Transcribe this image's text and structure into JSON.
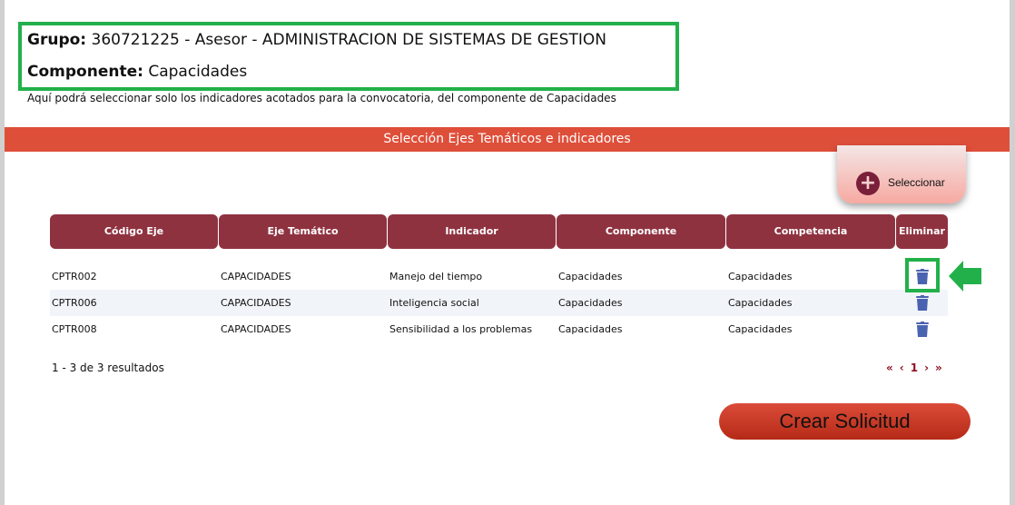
{
  "header": {
    "grupo_label": "Grupo:",
    "grupo_value": "360721225 - Asesor - ADMINISTRACION DE SISTEMAS DE GESTION",
    "componente_label": "Componente:",
    "componente_value": "Capacidades",
    "description": "Aquí podrá seleccionar solo los indicadores acotados para la convocatoria, del componente de Capacidades"
  },
  "banner": "Selección Ejes Temáticos e indicadores",
  "select_button": {
    "icon": "plus-circle-icon",
    "label": "Seleccionar"
  },
  "table": {
    "columns": [
      "Código Eje",
      "Eje Temático",
      "Indicador",
      "Componente",
      "Competencia",
      "Eliminar"
    ],
    "rows": [
      [
        "CPTR002",
        "CAPACIDADES",
        "Manejo del tiempo",
        "Capacidades",
        "Capacidades"
      ],
      [
        "CPTR006",
        "CAPACIDADES",
        "Inteligencia social",
        "Capacidades",
        "Capacidades"
      ],
      [
        "CPTR008",
        "CAPACIDADES",
        "Sensibilidad a los problemas",
        "Capacidades",
        "Capacidades"
      ]
    ]
  },
  "results": "1 - 3 de 3 resultados",
  "pager": {
    "first": "«",
    "prev": "‹",
    "page": "1",
    "next": "›",
    "last": "»"
  },
  "create_button": "Crear Solicitud",
  "colors": {
    "header_bg": "#8f3240",
    "banner": "#de4f3a",
    "highlight": "#22b04b",
    "trash": "#4a63b0",
    "create": "#c8371f"
  }
}
